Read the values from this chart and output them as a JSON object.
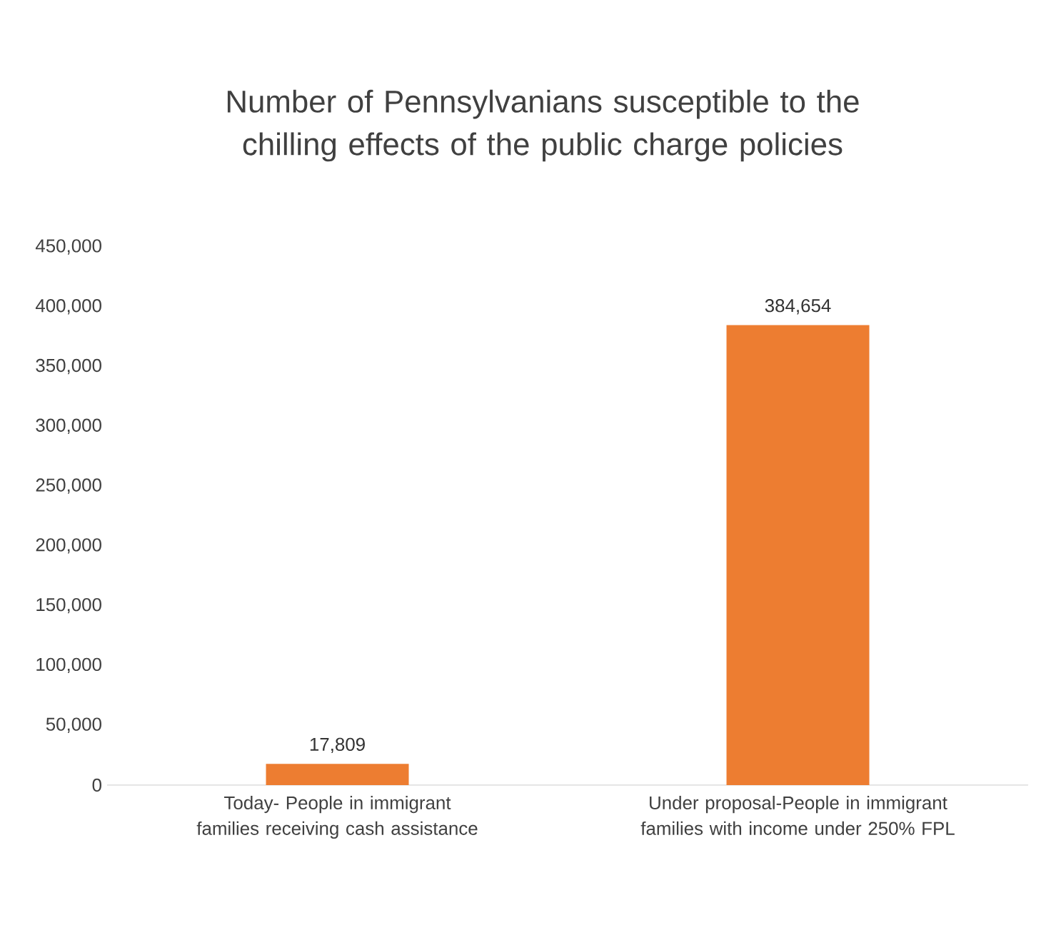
{
  "chart_data": {
    "type": "bar",
    "title": "Number of Pennsylvanians susceptible to the chilling effects of the public charge policies",
    "categories": [
      "Today- People in immigrant families receiving cash assistance",
      "Under proposal-People in immigrant families with income under 250% FPL"
    ],
    "values": [
      17809,
      384654
    ],
    "color": "#ed7d31",
    "value_labels": [
      "17,809",
      "384,654"
    ],
    "ylim": [
      0,
      450000
    ],
    "yticks": [
      {
        "value": 0,
        "label": "0"
      },
      {
        "value": 50000,
        "label": "50,000"
      },
      {
        "value": 100000,
        "label": "100,000"
      },
      {
        "value": 150000,
        "label": "150,000"
      },
      {
        "value": 200000,
        "label": "200,000"
      },
      {
        "value": 250000,
        "label": "250,000"
      },
      {
        "value": 300000,
        "label": "300,000"
      },
      {
        "value": 350000,
        "label": "350,000"
      },
      {
        "value": 400000,
        "label": "400,000"
      },
      {
        "value": 450000,
        "label": "450,000"
      }
    ],
    "grid": false
  }
}
